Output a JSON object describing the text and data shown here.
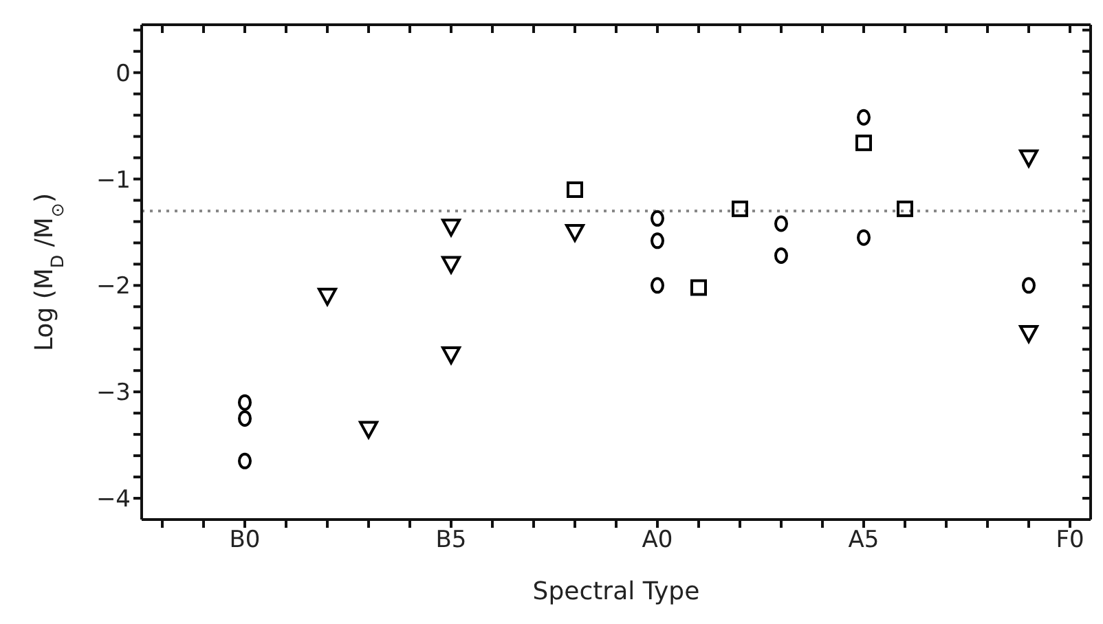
{
  "chart_data": {
    "type": "scatter",
    "xlabel": "Spectral Type",
    "ylabel": "Log (M$_{D}$ /M$_{⊙}$)",
    "categories": [
      null,
      null,
      "B0",
      null,
      null,
      null,
      null,
      "B5",
      null,
      null,
      null,
      null,
      "A0",
      null,
      null,
      null,
      null,
      "A5",
      null,
      null,
      null,
      null,
      "F0"
    ],
    "ylim": [
      -4.2,
      0.45
    ],
    "yticks": [
      -4,
      {
        "value": -3.8,
        "label": null
      },
      {
        "value": -3.6,
        "label": null
      },
      {
        "value": -3.4,
        "label": null
      },
      {
        "value": -3.2,
        "label": null
      },
      -3,
      {
        "value": -2.8,
        "label": null
      },
      {
        "value": -2.6,
        "label": null
      },
      {
        "value": -2.4,
        "label": null
      },
      {
        "value": -2.2,
        "label": null
      },
      -2,
      {
        "value": -1.8,
        "label": null
      },
      {
        "value": -1.6,
        "label": null
      },
      {
        "value": -1.4,
        "label": null
      },
      {
        "value": -1.2,
        "label": null
      },
      -1,
      {
        "value": -0.8,
        "label": null
      },
      {
        "value": -0.6,
        "label": null
      },
      {
        "value": -0.4,
        "label": null
      },
      {
        "value": -0.2,
        "label": null
      },
      0,
      {
        "value": 0.2,
        "label": null
      },
      {
        "value": 0.4,
        "label": null
      }
    ],
    "grid": false,
    "legend": false,
    "ref_lines": [
      {
        "axis": "y",
        "value": -1.3,
        "color": "#888888",
        "line_style": "dotted"
      }
    ],
    "series": [
      {
        "marker": "circle",
        "color": "#000000",
        "values": [
          null,
          null,
          -3.1,
          null,
          null,
          null,
          null,
          null,
          null,
          null,
          null,
          null,
          null,
          null,
          null,
          null,
          null,
          null,
          null,
          null,
          null,
          null,
          null
        ]
      },
      {
        "marker": "circle",
        "color": "#000000",
        "values": [
          null,
          null,
          -3.25,
          null,
          null,
          null,
          null,
          null,
          null,
          null,
          null,
          null,
          null,
          null,
          null,
          null,
          null,
          null,
          null,
          null,
          null,
          null,
          null
        ]
      },
      {
        "marker": "circle",
        "color": "#000000",
        "values": [
          null,
          null,
          -3.65,
          null,
          null,
          null,
          null,
          null,
          null,
          null,
          null,
          null,
          null,
          null,
          null,
          null,
          null,
          null,
          null,
          null,
          null,
          null,
          null
        ]
      },
      {
        "marker": "triangle",
        "color": "#000000",
        "values": [
          null,
          null,
          null,
          null,
          null,
          -3.35,
          null,
          -1.45,
          null,
          null,
          null,
          null,
          null,
          null,
          null,
          null,
          null,
          null,
          null,
          null,
          null,
          null,
          null
        ]
      },
      {
        "marker": "triangle",
        "color": "#000000",
        "values": [
          null,
          null,
          null,
          null,
          -2.1,
          null,
          null,
          -1.8,
          null,
          null,
          -1.5,
          null,
          null,
          null,
          null,
          null,
          null,
          null,
          null,
          null,
          null,
          -0.8,
          null
        ]
      },
      {
        "marker": "triangle",
        "color": "#000000",
        "values": [
          null,
          null,
          null,
          null,
          null,
          null,
          null,
          -2.65,
          null,
          null,
          null,
          null,
          null,
          null,
          null,
          null,
          null,
          null,
          null,
          null,
          null,
          -2.45,
          null
        ]
      },
      {
        "marker": "circle",
        "color": "#000000",
        "values": [
          null,
          null,
          null,
          null,
          null,
          null,
          null,
          null,
          null,
          null,
          null,
          null,
          -1.37,
          null,
          null,
          -1.42,
          null,
          -0.42,
          null,
          null,
          null,
          -2.0,
          null
        ]
      },
      {
        "marker": "circle",
        "color": "#000000",
        "values": [
          null,
          null,
          null,
          null,
          null,
          null,
          null,
          null,
          null,
          null,
          null,
          null,
          -1.58,
          null,
          null,
          -1.72,
          null,
          -1.55,
          null,
          null,
          null,
          null,
          null
        ]
      },
      {
        "marker": "circle",
        "color": "#000000",
        "values": [
          null,
          null,
          null,
          null,
          null,
          null,
          null,
          null,
          null,
          null,
          null,
          null,
          -2.0,
          null,
          null,
          null,
          null,
          null,
          null,
          null,
          null,
          null,
          null
        ]
      },
      {
        "marker": "square",
        "color": "#000000",
        "values": [
          null,
          null,
          null,
          null,
          null,
          null,
          null,
          null,
          null,
          null,
          -1.1,
          null,
          null,
          -2.02,
          -1.28,
          null,
          null,
          -0.66,
          -1.28,
          null,
          null,
          null,
          null
        ]
      }
    ]
  }
}
